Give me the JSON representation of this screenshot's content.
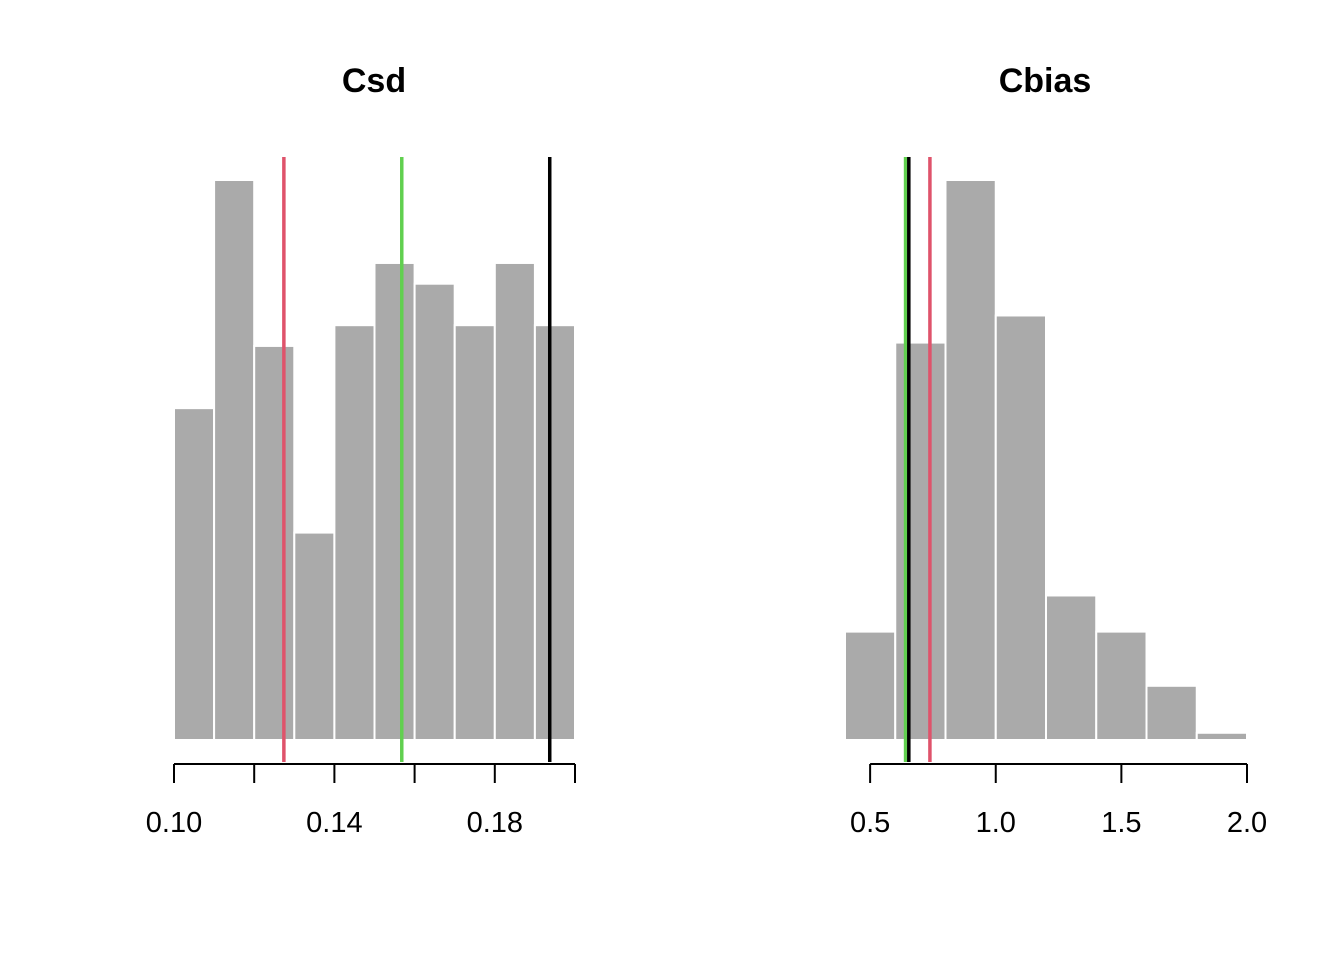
{
  "colors": {
    "bar_fill": "#aaaaaa",
    "bar_border": "#ffffff",
    "red": "#df536b",
    "green": "#61d04f",
    "black": "#000000"
  },
  "chart_data": [
    {
      "type": "bar",
      "subtype": "histogram",
      "title": "Csd",
      "xlabel": "",
      "ylabel": "",
      "xlim": [
        0.1,
        0.2
      ],
      "y_axis_shown": false,
      "x_ticks": [
        0.1,
        0.12,
        0.14,
        0.16,
        0.18,
        0.2
      ],
      "x_tick_labels": [
        "0.10",
        "",
        "0.14",
        "",
        "0.18",
        ""
      ],
      "bins": [
        {
          "start": 0.1,
          "end": 0.11,
          "count": 16
        },
        {
          "start": 0.11,
          "end": 0.12,
          "count": 27
        },
        {
          "start": 0.12,
          "end": 0.13,
          "count": 19
        },
        {
          "start": 0.13,
          "end": 0.14,
          "count": 10
        },
        {
          "start": 0.14,
          "end": 0.15,
          "count": 20
        },
        {
          "start": 0.15,
          "end": 0.16,
          "count": 23
        },
        {
          "start": 0.16,
          "end": 0.17,
          "count": 22
        },
        {
          "start": 0.17,
          "end": 0.18,
          "count": 20
        },
        {
          "start": 0.18,
          "end": 0.19,
          "count": 23
        },
        {
          "start": 0.19,
          "end": 0.2,
          "count": 20
        }
      ],
      "vlines": [
        {
          "x": 0.1274,
          "color": "#df536b"
        },
        {
          "x": 0.1568,
          "color": "#61d04f"
        },
        {
          "x": 0.1937,
          "color": "#000000"
        }
      ]
    },
    {
      "type": "bar",
      "subtype": "histogram",
      "title": "Cbias",
      "xlabel": "",
      "ylabel": "",
      "xlim": [
        0.4,
        2.0
      ],
      "y_axis_shown": false,
      "x_ticks": [
        0.5,
        1.0,
        1.5,
        2.0
      ],
      "x_tick_labels": [
        "0.5",
        "1.0",
        "1.5",
        "2.0"
      ],
      "bins": [
        {
          "start": 0.4,
          "end": 0.6,
          "count": 6
        },
        {
          "start": 0.6,
          "end": 0.8,
          "count": 22
        },
        {
          "start": 0.8,
          "end": 1.0,
          "count": 31
        },
        {
          "start": 1.0,
          "end": 1.2,
          "count": 23.5
        },
        {
          "start": 1.2,
          "end": 1.4,
          "count": 8
        },
        {
          "start": 1.4,
          "end": 1.6,
          "count": 6
        },
        {
          "start": 1.6,
          "end": 1.8,
          "count": 3
        },
        {
          "start": 1.8,
          "end": 2.0,
          "count": 0.4
        }
      ],
      "vlines": [
        {
          "x": 0.641,
          "color": "#61d04f"
        },
        {
          "x": 0.654,
          "color": "#000000"
        },
        {
          "x": 0.738,
          "color": "#df536b"
        }
      ]
    }
  ]
}
